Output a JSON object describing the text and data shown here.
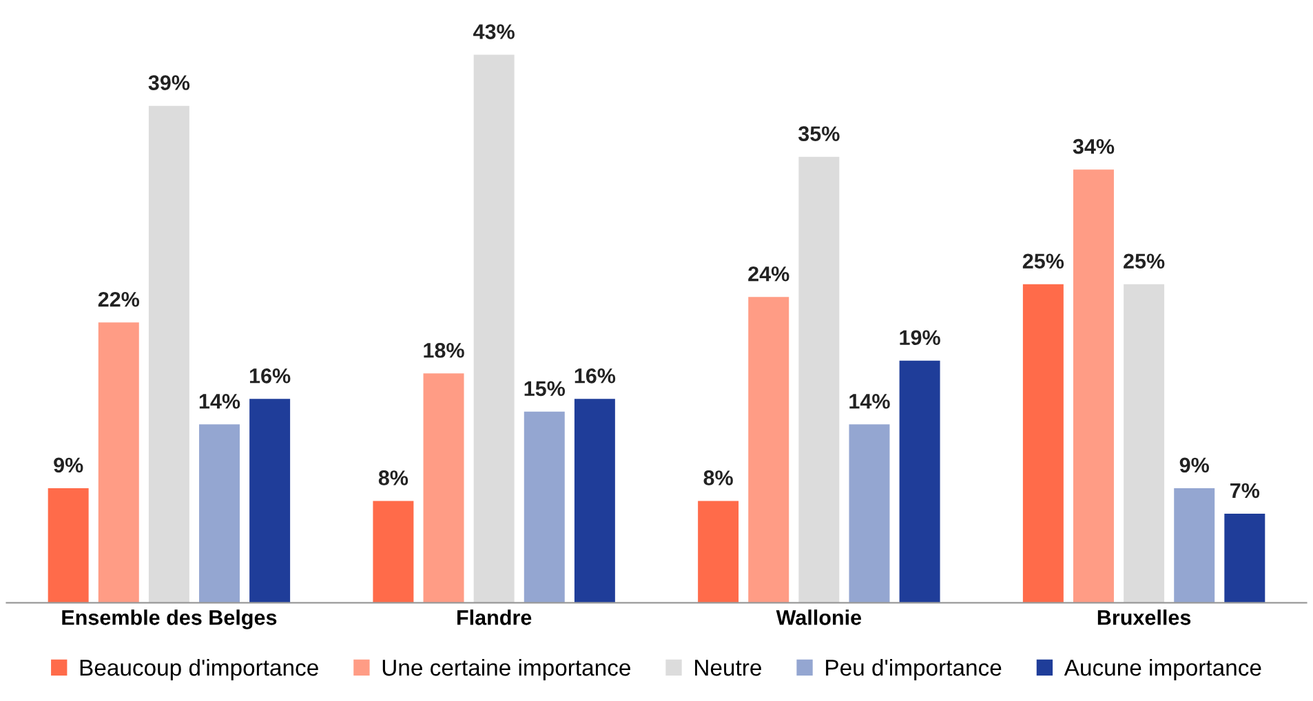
{
  "chart_data": {
    "type": "bar",
    "categories": [
      "Ensemble des Belges",
      "Flandre",
      "Wallonie",
      "Bruxelles"
    ],
    "series": [
      {
        "name": "Beaucoup d'importance",
        "color": "#ff6b4a",
        "values": [
          9,
          8,
          8,
          25
        ],
        "value_labels": [
          "9%",
          "8%",
          "8%",
          "25%"
        ]
      },
      {
        "name": "Une certaine importance",
        "color": "#ff9c85",
        "values": [
          22,
          18,
          24,
          34
        ],
        "value_labels": [
          "22%",
          "18%",
          "24%",
          "34%"
        ]
      },
      {
        "name": "Neutre",
        "color": "#dcdcdc",
        "values": [
          39,
          43,
          35,
          25
        ],
        "value_labels": [
          "39%",
          "43%",
          "35%",
          "25%"
        ]
      },
      {
        "name": "Peu d'importance",
        "color": "#94a6d1",
        "values": [
          14,
          15,
          14,
          9
        ],
        "value_labels": [
          "14%",
          "15%",
          "14%",
          "9%"
        ]
      },
      {
        "name": "Aucune importance",
        "color": "#1f3d99",
        "values": [
          16,
          16,
          19,
          7
        ],
        "value_labels": [
          "16%",
          "16%",
          "19%",
          "7%"
        ]
      }
    ],
    "legend": "bottom",
    "grid": false,
    "tick_labels": "x"
  }
}
